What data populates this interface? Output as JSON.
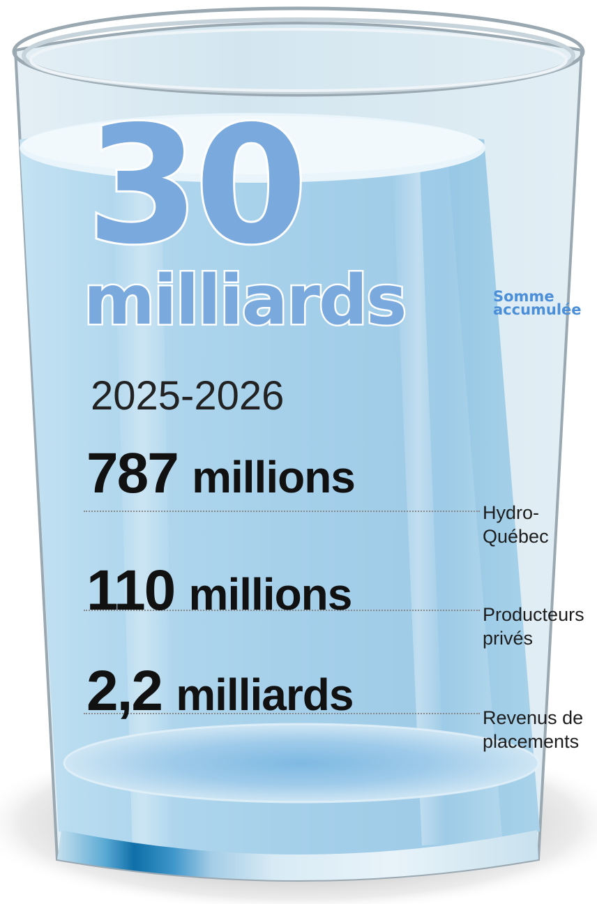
{
  "total": {
    "value": "30",
    "unit": "milliards",
    "label": "Somme accumulée"
  },
  "period": "2025-2026",
  "contributions": [
    {
      "number": "787",
      "unit": "millions",
      "source": "Hydro-Québec"
    },
    {
      "number": "110",
      "unit": "millions",
      "source": "Producteurs privés"
    },
    {
      "number": "2,2",
      "unit": "milliards",
      "source": "Revenus de placements"
    }
  ],
  "colors": {
    "water": "#aed6ee",
    "glass_rim": "#9aa8b2",
    "headline_blue": "#7aa9dd",
    "label_blue": "#4a8fd8",
    "text_dark": "#111111"
  }
}
